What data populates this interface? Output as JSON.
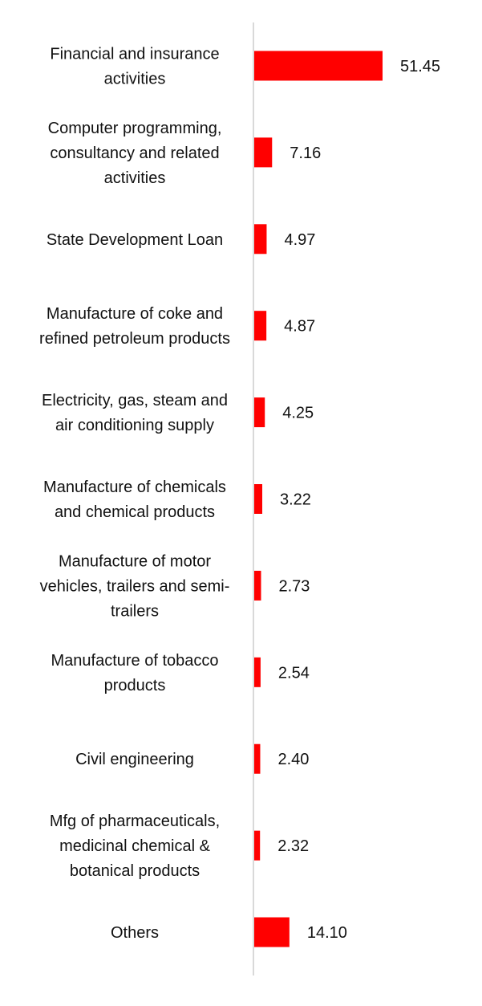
{
  "chart_data": {
    "type": "bar",
    "orientation": "horizontal",
    "categories": [
      [
        "Financial and insurance",
        "activities"
      ],
      [
        "Computer programming,",
        "consultancy and related",
        "activities"
      ],
      [
        "State Development Loan"
      ],
      [
        "Manufacture of coke and",
        "refined petroleum products"
      ],
      [
        "Electricity, gas, steam and",
        "air conditioning supply"
      ],
      [
        "Manufacture of chemicals",
        "and chemical products"
      ],
      [
        "Manufacture of motor",
        "vehicles, trailers and semi-",
        "trailers"
      ],
      [
        "Manufacture of tobacco",
        "products"
      ],
      [
        "Civil engineering"
      ],
      [
        "Mfg of pharmaceuticals,",
        "medicinal chemical &",
        "botanical products"
      ],
      [
        "Others"
      ]
    ],
    "values": [
      51.45,
      7.16,
      4.97,
      4.87,
      4.25,
      3.22,
      2.73,
      2.54,
      2.4,
      2.32,
      14.1
    ],
    "value_labels": [
      "51.45",
      "7.16",
      "4.97",
      "4.87",
      "4.25",
      "3.22",
      "2.73",
      "2.54",
      "2.40",
      "2.32",
      "14.10"
    ],
    "xlim": [
      0,
      55
    ],
    "bar_color": "#ff0000",
    "axis_color": "#d9d9d9",
    "grid": false
  }
}
